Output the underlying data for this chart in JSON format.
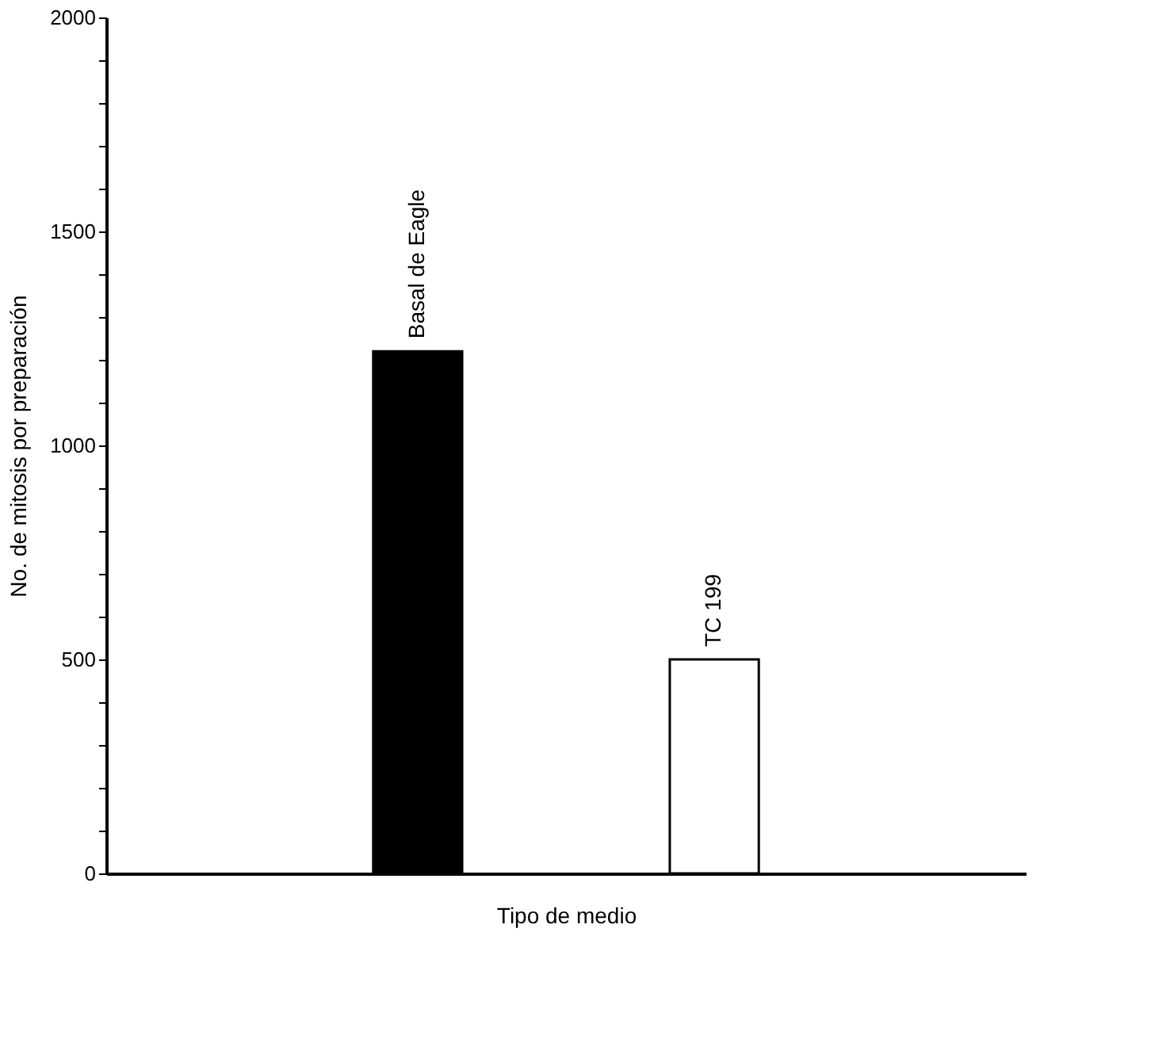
{
  "chart_data": {
    "type": "bar",
    "xlabel": "Tipo de medio",
    "ylabel": "No. de mitosis por preparación",
    "categories": [
      "Basal de Eagle",
      "TC 199"
    ],
    "values": [
      1220,
      500
    ],
    "colors": [
      "#000000",
      "#ffffff"
    ],
    "ylim": [
      0,
      2000
    ],
    "yticks": [
      0,
      {
        "value": 100,
        "label": null
      },
      {
        "value": 200,
        "label": null
      },
      {
        "value": 300,
        "label": null
      },
      {
        "value": 400,
        "label": null
      },
      500,
      {
        "value": 600,
        "label": null
      },
      {
        "value": 700,
        "label": null
      },
      {
        "value": 800,
        "label": null
      },
      {
        "value": 900,
        "label": null
      },
      1000,
      {
        "value": 1100,
        "label": null
      },
      {
        "value": 1200,
        "label": null
      },
      {
        "value": 1300,
        "label": null
      },
      {
        "value": 1400,
        "label": null
      },
      1500,
      {
        "value": 1600,
        "label": null
      },
      {
        "value": 1700,
        "label": null
      },
      {
        "value": 1800,
        "label": null
      },
      {
        "value": 1900,
        "label": null
      },
      2000
    ],
    "tick_labels": "y",
    "grid": false
  }
}
